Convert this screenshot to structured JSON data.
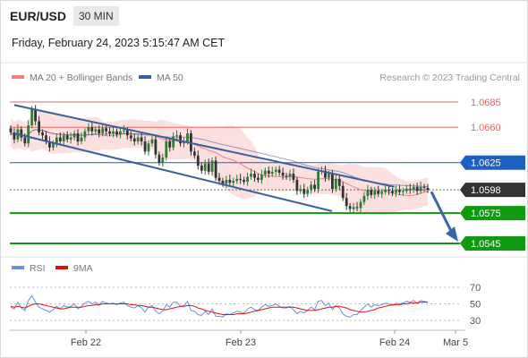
{
  "header": {
    "symbol": "EUR/USD",
    "timeframe": "30 MIN",
    "datetime": "Friday, February 24, 2023 5:15:47 AM CET"
  },
  "legend": {
    "ma20_label": "MA 20 + Bollinger Bands",
    "ma50_label": "MA 50",
    "credit": "Research © 2023 Trading Central",
    "rsi_label": "RSI",
    "nine_ma_label": "9MA"
  },
  "colors": {
    "ma20": "#f08080",
    "ma50": "#3a5fa0",
    "band_fill": "#fbd5d5",
    "bullish": "#2e7d32",
    "bearish": "#333333",
    "resistance": "#e06666",
    "pivot_blue": "#1f5fbf",
    "support": "#119911",
    "current": "#333333",
    "rsi": "#6f8fdd",
    "rsi_ma": "#e01010",
    "arrow": "#3a66aa"
  },
  "chart_data": {
    "type": "candlestick",
    "title": "EUR/USD",
    "timeframe": "30 MIN",
    "x_ticks": [
      "Feb 22",
      "Feb 23",
      "Feb 24",
      "Mar 5"
    ],
    "price_levels": [
      {
        "label": "1.0685",
        "value": 1.0685,
        "kind": "resistance"
      },
      {
        "label": "1.0660",
        "value": 1.066,
        "kind": "resistance"
      },
      {
        "label": "1.0625",
        "value": 1.0625,
        "kind": "pivot"
      },
      {
        "label": "1.0598",
        "value": 1.0598,
        "kind": "current"
      },
      {
        "label": "1.0575",
        "value": 1.0575,
        "kind": "support"
      },
      {
        "label": "1.0545",
        "value": 1.0545,
        "kind": "support"
      }
    ],
    "ylim": [
      1.054,
      1.0695
    ],
    "candles_close": [
      1.0655,
      1.0648,
      1.0658,
      1.065,
      1.0644,
      1.0662,
      1.0678,
      1.0666,
      1.0655,
      1.0652,
      1.0646,
      1.064,
      1.0644,
      1.065,
      1.0646,
      1.0652,
      1.0648,
      1.065,
      1.0654,
      1.0646,
      1.065,
      1.0656,
      1.066,
      1.0656,
      1.0658,
      1.0654,
      1.0659,
      1.0656,
      1.0654,
      1.0656,
      1.0653,
      1.0656,
      1.0657,
      1.0652,
      1.0649,
      1.0646,
      1.065,
      1.0646,
      1.0636,
      1.0644,
      1.0648,
      1.0633,
      1.0625,
      1.063,
      1.0646,
      1.064,
      1.0651,
      1.0652,
      1.0644,
      1.0646,
      1.0654,
      1.0636,
      1.0632,
      1.0622,
      1.0617,
      1.0624,
      1.0616,
      1.0627,
      1.061,
      1.0607,
      1.0604,
      1.0608,
      1.0605,
      1.0607,
      1.0609,
      1.0608,
      1.0606,
      1.0611,
      1.0614,
      1.061,
      1.0608,
      1.0613,
      1.0617,
      1.0614,
      1.0616,
      1.0618,
      1.0615,
      1.0612,
      1.0611,
      1.0614,
      1.0608,
      1.0597,
      1.0599,
      1.0594,
      1.0598,
      1.0603,
      1.0599,
      1.0616,
      1.0617,
      1.061,
      1.0614,
      1.0599,
      1.0609,
      1.0602,
      1.059,
      1.0582,
      1.0579,
      1.0581,
      1.058,
      1.0586,
      1.0592,
      1.0598,
      1.0593,
      1.0597,
      1.0594,
      1.0596,
      1.0598,
      1.0597,
      1.0595,
      1.0598,
      1.0596,
      1.0597,
      1.0599,
      1.0598,
      1.0601,
      1.0597,
      1.0601,
      1.06,
      1.0598
    ],
    "channel": {
      "upper": [
        [
          1.0682,
          0
        ],
        [
          1.0601,
          0.92
        ]
      ],
      "lower": [
        [
          1.0654,
          0
        ],
        [
          1.0577,
          0.77
        ]
      ]
    },
    "forecast_arrow": {
      "from": 1.0598,
      "to": 1.0545
    },
    "rsi": {
      "levels": [
        70,
        50,
        30
      ],
      "ylim": [
        20,
        80
      ],
      "series": [
        {
          "name": "RSI",
          "values": [
            46,
            44,
            52,
            45,
            42,
            54,
            60,
            52,
            46,
            44,
            42,
            40,
            43,
            47,
            44,
            48,
            46,
            47,
            50,
            44,
            47,
            51,
            53,
            50,
            52,
            49,
            53,
            51,
            50,
            51,
            49,
            51,
            52,
            48,
            46,
            45,
            48,
            45,
            40,
            46,
            48,
            41,
            38,
            41,
            49,
            46,
            52,
            52,
            47,
            48,
            53,
            42,
            41,
            37,
            36,
            41,
            37,
            44,
            35,
            35,
            34,
            38,
            37,
            39,
            41,
            40,
            39,
            44,
            46,
            43,
            42,
            46,
            49,
            47,
            48,
            50,
            47,
            45,
            45,
            47,
            43,
            38,
            41,
            39,
            42,
            46,
            43,
            53,
            54,
            48,
            51,
            43,
            48,
            45,
            38,
            35,
            34,
            37,
            37,
            42,
            46,
            50,
            46,
            49,
            48,
            49,
            51,
            50,
            48,
            51,
            50,
            51,
            53,
            52,
            54,
            51,
            54,
            53,
            52
          ]
        },
        {
          "name": "9MA",
          "values": [
            47,
            46,
            47,
            46,
            45,
            47,
            49,
            50,
            50,
            49,
            48,
            47,
            46,
            45,
            44,
            44,
            45,
            46,
            46,
            46,
            46,
            47,
            48,
            48,
            49,
            49,
            50,
            50,
            50,
            50,
            50,
            50,
            50,
            50,
            49,
            49,
            48,
            48,
            47,
            46,
            46,
            45,
            44,
            43,
            43,
            44,
            45,
            46,
            47,
            47,
            48,
            48,
            47,
            45,
            44,
            42,
            41,
            40,
            39,
            38,
            37,
            37,
            37,
            37,
            38,
            38,
            38,
            39,
            40,
            41,
            42,
            43,
            44,
            45,
            46,
            46,
            46,
            46,
            46,
            46,
            46,
            45,
            44,
            43,
            42,
            42,
            42,
            43,
            44,
            45,
            46,
            46,
            47,
            47,
            46,
            45,
            43,
            42,
            41,
            40,
            40,
            41,
            42,
            43,
            45,
            46,
            47,
            48,
            49,
            49,
            49,
            50,
            50,
            51,
            51,
            51,
            52,
            52,
            52
          ]
        }
      ]
    }
  }
}
